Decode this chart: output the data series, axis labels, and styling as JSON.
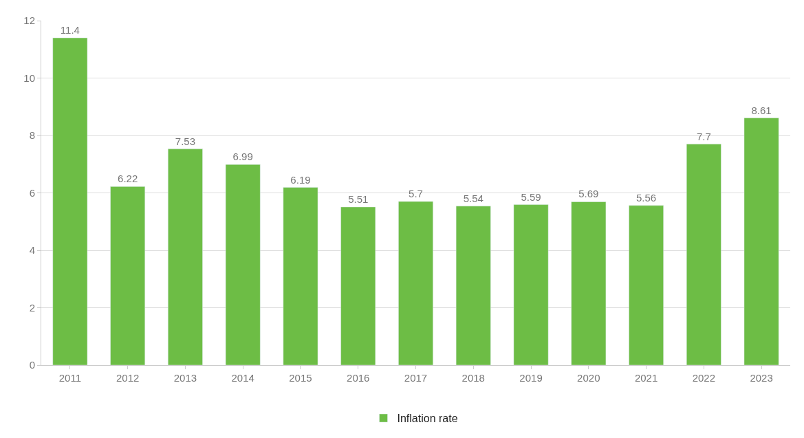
{
  "chart_data": {
    "type": "bar",
    "categories": [
      "2011",
      "2012",
      "2013",
      "2014",
      "2015",
      "2016",
      "2017",
      "2018",
      "2019",
      "2020",
      "2021",
      "2022",
      "2023"
    ],
    "series": [
      {
        "name": "Inflation rate",
        "color": "#6dbd45",
        "values": [
          11.4,
          6.22,
          7.53,
          6.99,
          6.19,
          5.51,
          5.7,
          5.54,
          5.59,
          5.69,
          5.56,
          7.7,
          8.61
        ]
      }
    ],
    "ylim": [
      0,
      12
    ],
    "yticks": [
      0,
      2,
      4,
      6,
      8,
      10,
      12
    ],
    "grid": "y",
    "legend": "bottom",
    "data_labels": true
  }
}
